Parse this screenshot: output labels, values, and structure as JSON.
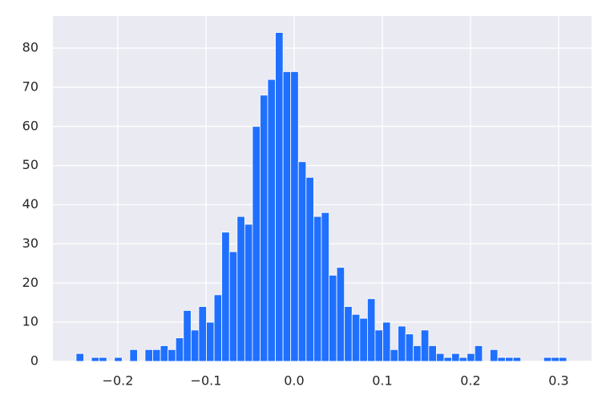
{
  "chart_data": {
    "type": "histogram",
    "bins": [
      -0.2473,
      -0.2386,
      -0.2299,
      -0.2212,
      -0.2125,
      -0.2038,
      -0.1951,
      -0.1864,
      -0.1777,
      -0.1691,
      -0.1604,
      -0.1517,
      -0.143,
      -0.1343,
      -0.1256,
      -0.1169,
      -0.1082,
      -0.0995,
      -0.0908,
      -0.0821,
      -0.0734,
      -0.0647,
      -0.056,
      -0.0473,
      -0.0386,
      -0.03,
      -0.0213,
      -0.0126,
      -0.0039,
      0.0048,
      0.0135,
      0.0222,
      0.0309,
      0.0396,
      0.0483,
      0.057,
      0.0657,
      0.0744,
      0.0831,
      0.0918,
      0.1005,
      0.1091,
      0.1178,
      0.1265,
      0.1352,
      0.1439,
      0.1526,
      0.1613,
      0.17,
      0.1787,
      0.1874,
      0.1961,
      0.2048,
      0.2135,
      0.2222,
      0.2309,
      0.2396,
      0.2483,
      0.257,
      0.2656,
      0.2743,
      0.283,
      0.2917,
      0.3004,
      0.3091
    ],
    "values": [
      2,
      0,
      1,
      1,
      0,
      1,
      0,
      3,
      0,
      3,
      3,
      4,
      3,
      6,
      13,
      8,
      14,
      10,
      17,
      33,
      28,
      37,
      35,
      60,
      68,
      72,
      84,
      74,
      74,
      51,
      47,
      37,
      38,
      22,
      24,
      14,
      12,
      11,
      16,
      8,
      10,
      3,
      9,
      7,
      4,
      8,
      4,
      2,
      1,
      2,
      1,
      2,
      4,
      0,
      3,
      1,
      1,
      1,
      0,
      0,
      0,
      1,
      1,
      1
    ],
    "color": "#2070ff",
    "xlim": [
      -0.2736,
      0.3373
    ],
    "xticks": [
      {
        "value": -0.2,
        "label": "−0.2"
      },
      {
        "value": -0.1,
        "label": "−0.1"
      },
      {
        "value": 0,
        "label": "0.0"
      },
      0.1,
      0.2,
      0.3
    ],
    "ylim": [
      0,
      88.2
    ],
    "yticks": [
      0,
      10,
      20,
      30,
      40,
      50,
      60,
      70,
      80
    ],
    "grid": true
  }
}
